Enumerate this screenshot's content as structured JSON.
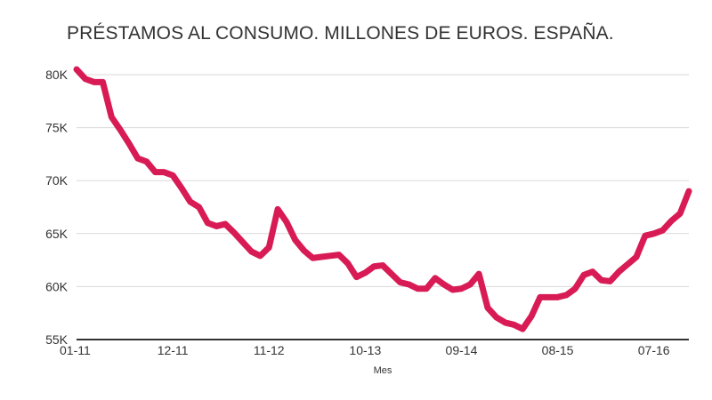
{
  "chart_data": {
    "type": "line",
    "title": "PRÉSTAMOS AL CONSUMO. MILLONES DE EUROS. ESPAÑA.",
    "xlabel": "Mes",
    "ylabel": "",
    "ylim": [
      55000,
      80000
    ],
    "y_ticks": [
      55000,
      60000,
      65000,
      70000,
      75000,
      80000
    ],
    "y_tick_labels": [
      "55K",
      "60K",
      "65K",
      "70K",
      "75K",
      "80K"
    ],
    "x_tick_labels": [
      "01-11",
      "12-11",
      "11-12",
      "10-13",
      "09-14",
      "08-15",
      "07-16"
    ],
    "x_tick_indices": [
      0,
      11,
      22,
      33,
      44,
      55,
      66
    ],
    "grid": true,
    "line_color": "#d81b55",
    "series": [
      {
        "values": [
          80500,
          79600,
          79300,
          79300,
          76000,
          74800,
          73500,
          72100,
          71800,
          70800,
          70800,
          70500,
          69300,
          68000,
          67500,
          66000,
          65700,
          65900,
          65100,
          64200,
          63300,
          62900,
          63700,
          67300,
          66100,
          64400,
          63400,
          62700,
          62800,
          62900,
          63000,
          62200,
          60900,
          61300,
          61900,
          62000,
          61200,
          60400,
          60200,
          59800,
          59800,
          60800,
          60200,
          59700,
          59800,
          60200,
          61200,
          58000,
          57100,
          56600,
          56400,
          56000,
          57200,
          59000,
          59000,
          59000,
          59200,
          59800,
          61100,
          61400,
          60600,
          60500,
          61400,
          62100,
          62800,
          64800,
          65000,
          65300,
          66200,
          66900,
          69000
        ]
      }
    ]
  }
}
